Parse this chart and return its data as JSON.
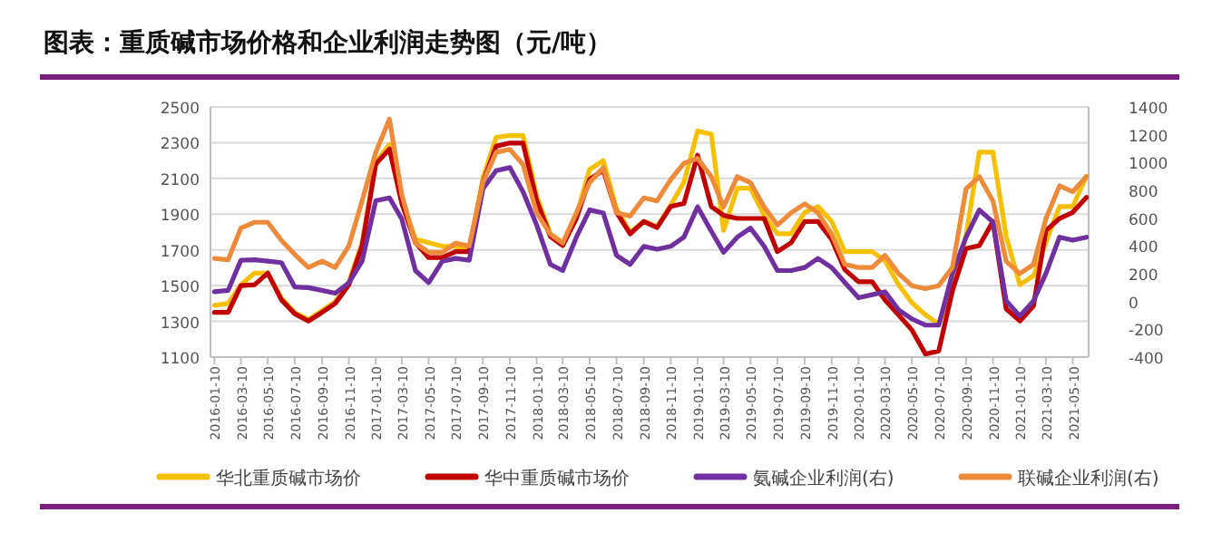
{
  "chart_data": {
    "type": "line",
    "title": "图表：重质碱市场价格和企业利润走势图（元/吨）",
    "x": [
      "2016-01-10",
      "2016-02-10",
      "2016-03-10",
      "2016-04-10",
      "2016-05-10",
      "2016-06-10",
      "2016-07-10",
      "2016-08-10",
      "2016-09-10",
      "2016-10-10",
      "2016-11-10",
      "2016-12-10",
      "2017-01-10",
      "2017-02-10",
      "2017-03-10",
      "2017-04-10",
      "2017-05-10",
      "2017-06-10",
      "2017-07-10",
      "2017-08-10",
      "2017-09-10",
      "2017-10-10",
      "2017-11-10",
      "2017-12-10",
      "2018-01-10",
      "2018-02-10",
      "2018-03-10",
      "2018-04-10",
      "2018-05-10",
      "2018-06-10",
      "2018-07-10",
      "2018-08-10",
      "2018-09-10",
      "2018-10-10",
      "2018-11-10",
      "2018-12-10",
      "2019-01-10",
      "2019-02-10",
      "2019-03-10",
      "2019-04-10",
      "2019-05-10",
      "2019-06-10",
      "2019-07-10",
      "2019-08-10",
      "2019-09-10",
      "2019-10-10",
      "2019-11-10",
      "2019-12-10",
      "2020-01-10",
      "2020-02-10",
      "2020-03-10",
      "2020-04-10",
      "2020-05-10",
      "2020-06-10",
      "2020-07-10",
      "2020-08-10",
      "2020-09-10",
      "2020-10-10",
      "2020-11-10",
      "2020-12-10",
      "2021-01-10",
      "2021-02-10",
      "2021-03-10",
      "2021-04-10",
      "2021-05-10",
      "2021-06-10"
    ],
    "xlim": [
      "2016-01-01",
      "2021-06-15"
    ],
    "xticks": [
      "2016-01-10",
      "2016-03-10",
      "2016-05-10",
      "2016-07-10",
      "2016-09-10",
      "2016-11-10",
      "2017-01-10",
      "2017-03-10",
      "2017-05-10",
      "2017-07-10",
      "2017-09-10",
      "2017-11-10",
      "2018-01-10",
      "2018-03-10",
      "2018-05-10",
      "2018-07-10",
      "2018-09-10",
      "2018-11-10",
      "2019-01-10",
      "2019-03-10",
      "2019-05-10",
      "2019-07-10",
      "2019-09-10",
      "2019-11-10",
      "2020-01-10",
      "2020-03-10",
      "2020-05-10",
      "2020-07-10",
      "2020-09-10",
      "2020-11-10",
      "2021-01-10",
      "2021-03-10",
      "2021-05-10"
    ],
    "ylim": [
      1100,
      2500
    ],
    "yticks": [
      1100,
      1300,
      1500,
      1700,
      1900,
      2100,
      2300,
      2500
    ],
    "y2lim": [
      -400,
      1400
    ],
    "y2ticks": [
      -400,
      -200,
      0,
      200,
      400,
      600,
      800,
      1000,
      1200,
      1400
    ],
    "grid": "y",
    "legend": "bottom",
    "series": [
      {
        "name": "华北重质碱市场价",
        "color": "#f5c000",
        "values": [
          1390,
          1400,
          1505,
          1570,
          1570,
          1430,
          1350,
          1310,
          1360,
          1410,
          1520,
          1740,
          2190,
          2290,
          1980,
          1760,
          1740,
          1720,
          1720,
          1700,
          2100,
          2330,
          2340,
          2340,
          2000,
          1790,
          1740,
          1890,
          2150,
          2200,
          1930,
          1800,
          1860,
          1830,
          1950,
          2078,
          2365,
          2348,
          1809,
          2045,
          2045,
          1893,
          1791,
          1791,
          1910,
          1943,
          1859,
          1690,
          1690,
          1690,
          1640,
          1505,
          1404,
          1336,
          1285,
          1471,
          1780,
          2247,
          2247,
          1775,
          1505,
          1555,
          1740,
          1943,
          1943,
          2112
        ]
      },
      {
        "name": "华中重质碱市场价",
        "color": "#c00000",
        "values": [
          1350,
          1350,
          1500,
          1505,
          1570,
          1420,
          1343,
          1302,
          1350,
          1400,
          1505,
          1724,
          2180,
          2264,
          1960,
          1740,
          1657,
          1657,
          1690,
          1690,
          2078,
          2280,
          2298,
          2298,
          1975,
          1775,
          1724,
          1876,
          2095,
          2146,
          1910,
          1790,
          1859,
          1825,
          1943,
          1960,
          2230,
          1943,
          1893,
          1876,
          1876,
          1876,
          1690,
          1740,
          1859,
          1859,
          1758,
          1589,
          1522,
          1522,
          1420,
          1336,
          1252,
          1117,
          1134,
          1471,
          1707,
          1724,
          1859,
          1370,
          1302,
          1387,
          1808,
          1876,
          1910,
          1994
        ]
      },
      {
        "name": "氨碱企业利润(右)",
        "color": "#7030a0",
        "axis": "y2",
        "values": [
          70,
          80,
          297,
          300,
          290,
          280,
          105,
          100,
          80,
          60,
          135,
          290,
          725,
          746,
          594,
          223,
          136,
          290,
          310,
          297,
          811,
          942,
          964,
          790,
          550,
          267,
          223,
          463,
          659,
          637,
          332,
          267,
          397,
          376,
          397,
          463,
          681,
          506,
          354,
          463,
          528,
          397,
          223,
          223,
          245,
          310,
          245,
          136,
          27,
          49,
          70,
          -60,
          -126,
          -170,
          -170,
          201,
          463,
          659,
          572,
          5,
          -104,
          5,
          201,
          463,
          441,
          463
        ]
      },
      {
        "name": "联碱企业利润(右)",
        "color": "#ed8b3a",
        "axis": "y2",
        "values": [
          310,
          300,
          528,
          570,
          570,
          440,
          340,
          245,
          290,
          245,
          400,
          725,
          1073,
          1313,
          768,
          420,
          354,
          354,
          420,
          400,
          855,
          1073,
          1095,
          986,
          638,
          485,
          420,
          638,
          855,
          964,
          638,
          615,
          746,
          724,
          877,
          995,
          1030,
          899,
          681,
          899,
          855,
          681,
          550,
          638,
          703,
          638,
          485,
          267,
          245,
          245,
          332,
          201,
          114,
          92,
          114,
          245,
          811,
          899,
          724,
          289,
          201,
          267,
          594,
          833,
          790,
          899
        ]
      }
    ]
  }
}
